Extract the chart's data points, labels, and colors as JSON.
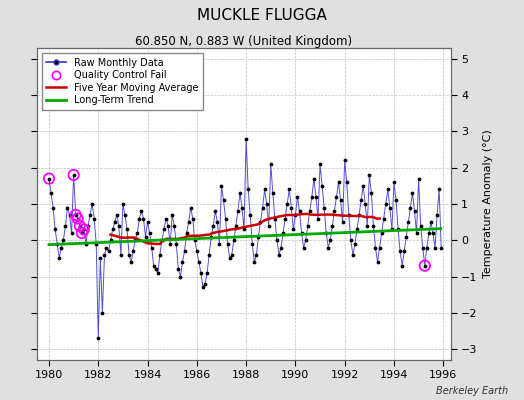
{
  "title": "MUCKLE FLUGGA",
  "subtitle": "60.850 N, 0.883 W (United Kingdom)",
  "ylabel": "Temperature Anomaly (°C)",
  "watermark": "Berkeley Earth",
  "xlim": [
    1979.5,
    1996.3
  ],
  "ylim": [
    -3.3,
    5.3
  ],
  "yticks": [
    -3,
    -2,
    -1,
    0,
    1,
    2,
    3,
    4,
    5
  ],
  "xticks": [
    1980,
    1982,
    1984,
    1986,
    1988,
    1990,
    1992,
    1994,
    1996
  ],
  "bg_color": "#e0e0e0",
  "plot_bg_color": "#ffffff",
  "grid_color": "#c0c0c0",
  "line_color_raw": "#3333cc",
  "line_color_ma": "#cc0000",
  "line_color_trend": "#00aa00",
  "marker_color": "#000000",
  "qc_fail_color": "#ff00ff",
  "raw_data": [
    1.7,
    1.3,
    0.9,
    0.3,
    -0.1,
    -0.5,
    -0.2,
    0.0,
    0.4,
    0.9,
    0.7,
    0.2,
    1.8,
    0.7,
    0.6,
    0.4,
    0.2,
    0.3,
    -0.1,
    0.4,
    0.7,
    1.0,
    0.6,
    -0.1,
    -2.7,
    -0.5,
    -2.0,
    -0.4,
    -0.2,
    -0.3,
    0.0,
    0.3,
    0.5,
    0.7,
    0.4,
    -0.4,
    1.0,
    0.7,
    0.3,
    -0.4,
    -0.6,
    -0.3,
    0.0,
    0.2,
    0.6,
    0.8,
    0.6,
    0.1,
    0.5,
    0.2,
    -0.2,
    -0.7,
    -0.8,
    -0.9,
    -0.4,
    0.0,
    0.3,
    0.6,
    0.4,
    -0.1,
    0.7,
    0.4,
    -0.1,
    -0.8,
    -1.0,
    -0.6,
    -0.3,
    0.2,
    0.5,
    0.9,
    0.6,
    0.0,
    -0.3,
    -0.6,
    -0.9,
    -1.3,
    -1.2,
    -0.9,
    -0.4,
    0.1,
    0.4,
    0.8,
    0.5,
    -0.1,
    1.5,
    1.1,
    0.6,
    -0.1,
    -0.5,
    -0.4,
    0.0,
    0.4,
    0.8,
    1.3,
    0.9,
    0.3,
    2.8,
    1.4,
    0.7,
    -0.1,
    -0.6,
    -0.4,
    0.1,
    0.5,
    0.9,
    1.4,
    1.0,
    0.4,
    2.1,
    1.3,
    0.6,
    0.0,
    -0.4,
    -0.2,
    0.2,
    0.6,
    1.0,
    1.4,
    0.9,
    0.3,
    0.7,
    1.2,
    0.8,
    0.2,
    -0.2,
    0.0,
    0.4,
    0.8,
    1.2,
    1.7,
    1.2,
    0.6,
    2.1,
    1.5,
    0.9,
    0.2,
    -0.2,
    0.0,
    0.4,
    0.8,
    1.2,
    1.6,
    1.1,
    0.5,
    2.2,
    1.6,
    0.7,
    0.0,
    -0.4,
    -0.1,
    0.3,
    0.7,
    1.1,
    1.5,
    1.0,
    0.4,
    1.8,
    1.3,
    0.4,
    -0.2,
    -0.6,
    -0.2,
    0.2,
    0.6,
    1.0,
    1.4,
    0.9,
    0.3,
    1.6,
    1.1,
    0.3,
    -0.3,
    -0.7,
    -0.3,
    0.1,
    0.5,
    0.9,
    1.3,
    0.8,
    0.2,
    1.7,
    0.4,
    -0.2,
    -0.7,
    -0.2,
    0.2,
    0.5,
    0.2,
    -0.2,
    0.7,
    1.4,
    -0.2
  ],
  "qc_fail_indices": [
    0,
    12,
    13,
    14,
    15,
    16,
    17,
    183
  ],
  "trend_x": [
    1980.0,
    1995.9
  ],
  "trend_y": [
    -0.12,
    0.32
  ]
}
